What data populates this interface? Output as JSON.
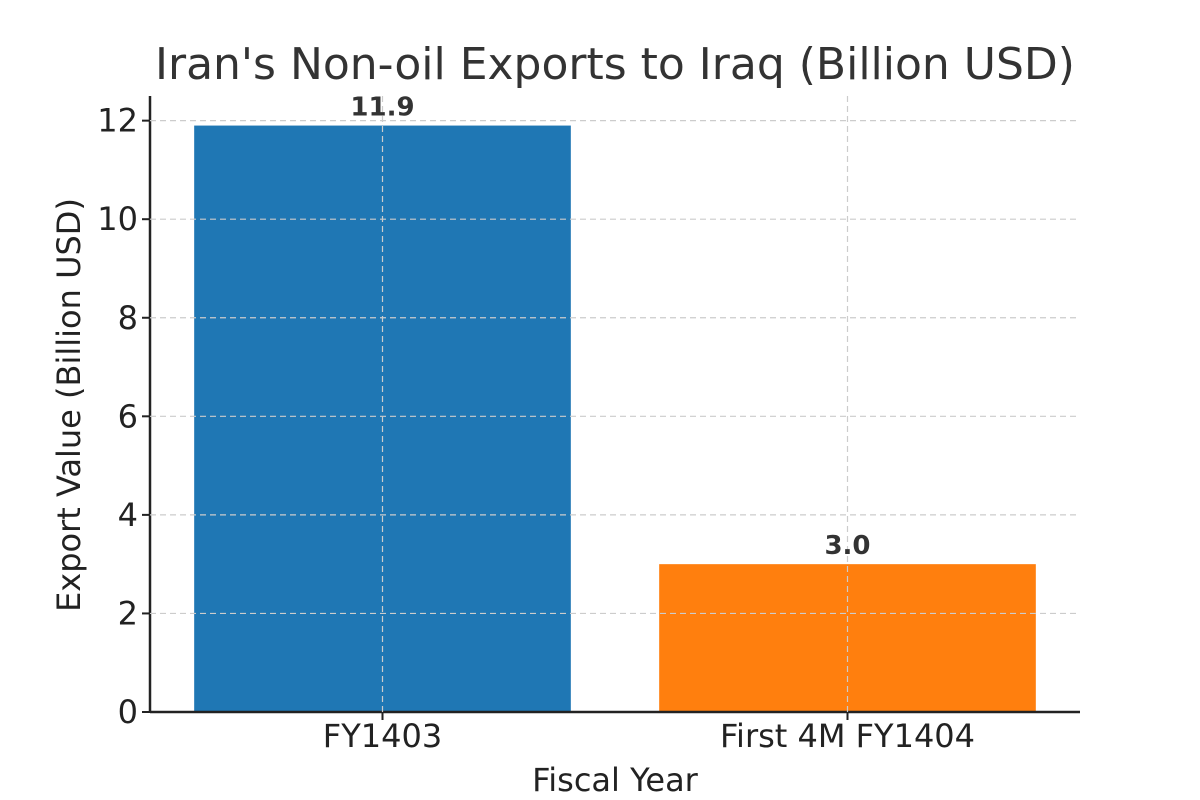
{
  "chart_data": {
    "type": "bar",
    "title": "Iran's Non-oil Exports to Iraq (Billion USD)",
    "xlabel": "Fiscal Year",
    "ylabel": "Export Value (Billion USD)",
    "categories": [
      "FY1403",
      "First 4M FY1404"
    ],
    "values": [
      11.9,
      3.0
    ],
    "data_labels": [
      "11.9",
      "3.0"
    ],
    "bar_colors": [
      "#1f77b4",
      "#ff7f0e"
    ],
    "ylim": [
      0,
      12.5
    ],
    "yticks": [
      0,
      2,
      4,
      6,
      8,
      10,
      12
    ],
    "ytick_labels": [
      "0",
      "2",
      "4",
      "6",
      "8",
      "10",
      "12"
    ],
    "grid": true
  }
}
